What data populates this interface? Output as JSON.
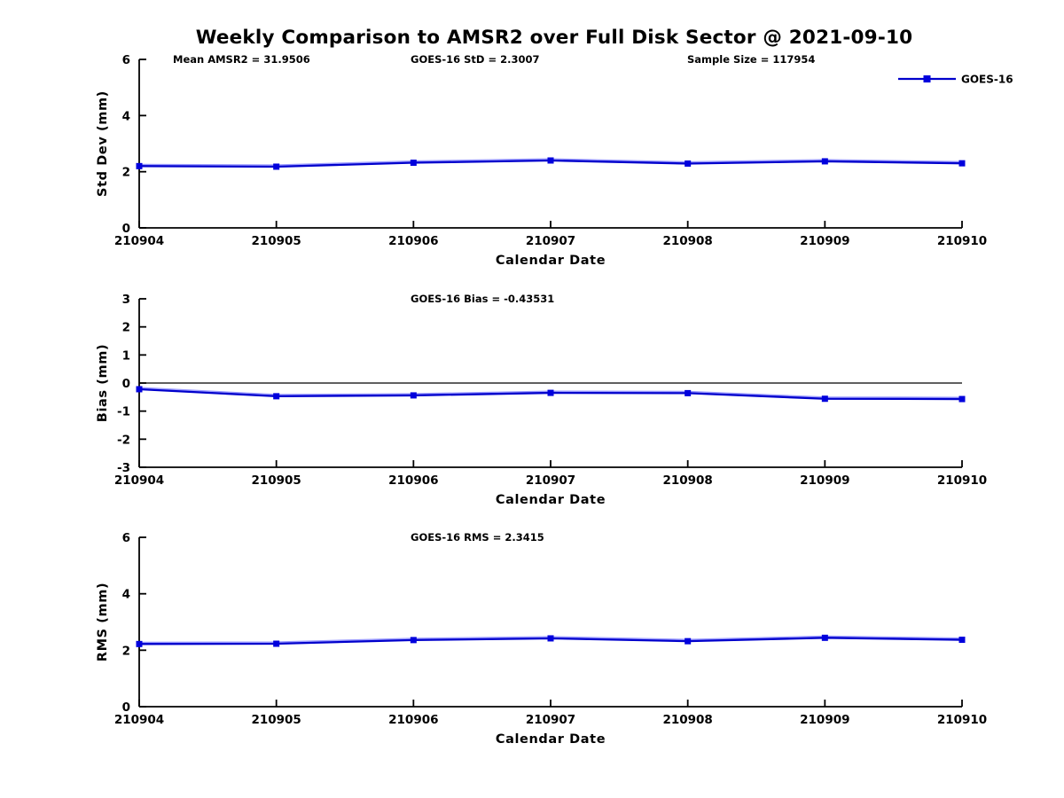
{
  "figure": {
    "title": "Weekly Comparison to AMSR2 over Full Disk Sector @ 2021-09-10"
  },
  "colors": {
    "line": "#0000cc",
    "line_halo": "#7b7bff",
    "marker": "#0000dd",
    "axis": "#000000",
    "zero_line": "#000000",
    "background": "#ffffff"
  },
  "legend": {
    "label": "GOES-16",
    "marker": "square",
    "position": "top-right"
  },
  "chart_data": [
    {
      "type": "line",
      "panel": "std-dev",
      "annotations": [
        "Mean AMSR2 = 31.9506",
        "GOES-16 StD = 2.3007",
        "Sample Size = 117954"
      ],
      "xlabel": "Calendar Date",
      "ylabel": "Std Dev (mm)",
      "ylim": [
        0,
        6
      ],
      "yticks": [
        0,
        2,
        4,
        6
      ],
      "categories": [
        "210904",
        "210905",
        "210906",
        "210907",
        "210908",
        "210909",
        "210910"
      ],
      "grid": false,
      "zero_line": false,
      "series": [
        {
          "name": "GOES-16",
          "values": [
            2.2,
            2.18,
            2.32,
            2.4,
            2.29,
            2.37,
            2.3
          ]
        }
      ]
    },
    {
      "type": "line",
      "panel": "bias",
      "annotations": [
        "GOES-16 Bias  = -0.43531"
      ],
      "xlabel": "Calendar Date",
      "ylabel": "Bias (mm)",
      "ylim": [
        -3,
        3
      ],
      "yticks": [
        -3,
        -2,
        -1,
        0,
        1,
        2,
        3
      ],
      "categories": [
        "210904",
        "210905",
        "210906",
        "210907",
        "210908",
        "210909",
        "210910"
      ],
      "grid": false,
      "zero_line": true,
      "series": [
        {
          "name": "GOES-16",
          "values": [
            -0.22,
            -0.47,
            -0.44,
            -0.35,
            -0.36,
            -0.56,
            -0.57
          ]
        }
      ]
    },
    {
      "type": "line",
      "panel": "rms",
      "annotations": [
        "GOES-16 RMS = 2.3415"
      ],
      "xlabel": "Calendar Date",
      "ylabel": "RMS (mm)",
      "ylim": [
        0,
        6
      ],
      "yticks": [
        0,
        2,
        4,
        6
      ],
      "categories": [
        "210904",
        "210905",
        "210906",
        "210907",
        "210908",
        "210909",
        "210910"
      ],
      "grid": false,
      "zero_line": false,
      "series": [
        {
          "name": "GOES-16",
          "values": [
            2.22,
            2.23,
            2.36,
            2.42,
            2.32,
            2.44,
            2.37
          ]
        }
      ]
    }
  ]
}
